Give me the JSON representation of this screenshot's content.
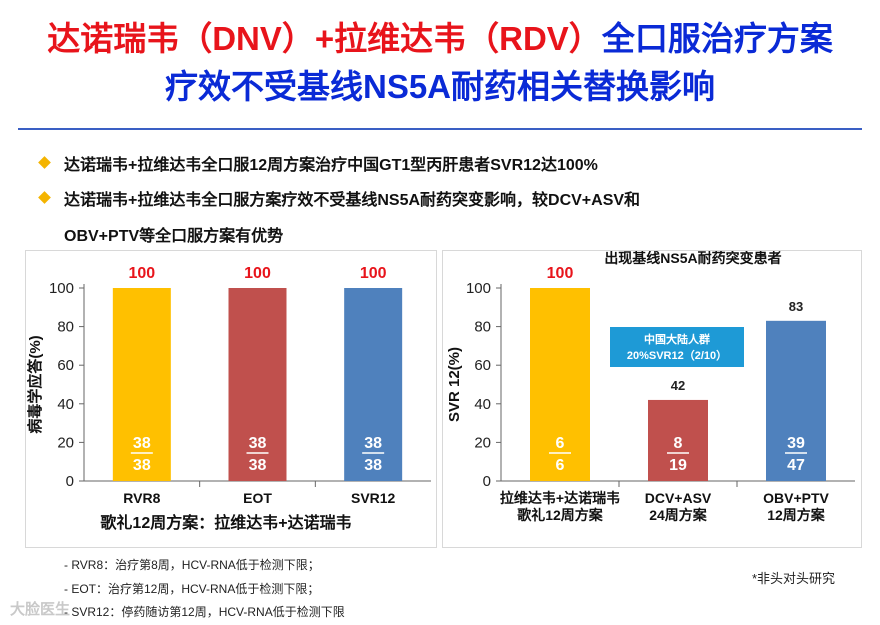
{
  "title": {
    "part_red": "达诺瑞韦（DNV）+拉维达韦（RDV）",
    "part_blue": "全口服治疗方案",
    "line2": "疗效不受基线NS5A耐药相关替换影响"
  },
  "bullets": [
    "达诺瑞韦+拉维达韦全口服12周方案治疗中国GT1型丙肝患者SVR12达100%",
    "达诺瑞韦+拉维达韦全口服方案疗效不受基线NS5A耐药突变影响，较DCV+ASV和",
    "OBV+PTV等全口服方案有优势"
  ],
  "colors": {
    "gold": "#ffc000",
    "red": "#c0504d",
    "blue": "#4f81bd",
    "label_red": "#e8141b",
    "callout": "#1e9ad6"
  },
  "chart_data": [
    {
      "type": "bar",
      "ylabel": "病毒学应答(%)",
      "xlabel": "歌礼12周方案：拉维达韦+达诺瑞韦",
      "ylim": [
        0,
        100
      ],
      "yticks": [
        "0",
        "20",
        "40",
        "60",
        "80",
        "100"
      ],
      "categories": [
        "RVR8",
        "EOT",
        "SVR12"
      ],
      "values": [
        100,
        100,
        100
      ],
      "value_labels": [
        "100",
        "100",
        "100"
      ],
      "numerators": [
        "38",
        "38",
        "38"
      ],
      "denominators": [
        "38",
        "38",
        "38"
      ],
      "bar_colors": [
        "#ffc000",
        "#c0504d",
        "#4f81bd"
      ]
    },
    {
      "type": "bar",
      "title": "出现基线NS5A耐药突变患者",
      "ylabel": "SVR 12(%)",
      "ylim": [
        0,
        100
      ],
      "yticks": [
        "0",
        "20",
        "40",
        "60",
        "80",
        "100"
      ],
      "categories": [
        [
          "拉维达韦+达诺瑞韦",
          "歌礼12周方案"
        ],
        [
          "DCV+ASV",
          "24周方案"
        ],
        [
          "OBV+PTV",
          "12周方案"
        ]
      ],
      "values": [
        100,
        42,
        83
      ],
      "value_labels": [
        "100",
        "42",
        "83"
      ],
      "numerators": [
        "6",
        "8",
        "39"
      ],
      "denominators": [
        "6",
        "19",
        "47"
      ],
      "bar_colors": [
        "#ffc000",
        "#c0504d",
        "#4f81bd"
      ],
      "annotation": [
        "中国大陆人群",
        "20%SVR12（2/10）"
      ]
    }
  ],
  "notes": [
    "- RVR8：治疗第8周，HCV-RNA低于检测下限；",
    "- EOT：治疗第12周，HCV-RNA低于检测下限；",
    "- SVR12：停药随访第12周，HCV-RNA低于检测下限"
  ],
  "footnote": "*非头对头研究",
  "watermark": "大脸医生"
}
